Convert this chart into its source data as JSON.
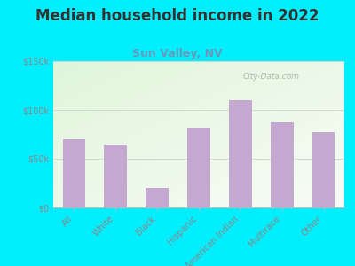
{
  "title": "Median household income in 2022",
  "subtitle": "Sun Valley, NV",
  "categories": [
    "All",
    "White",
    "Black",
    "Hispanic",
    "American Indian",
    "Multirace",
    "Other"
  ],
  "values": [
    70000,
    65000,
    20000,
    82000,
    110000,
    87000,
    77000
  ],
  "bar_color": "#c4a8d0",
  "background_outer": "#00efff",
  "title_color": "#333333",
  "subtitle_color": "#6699bb",
  "tick_color": "#888888",
  "ylim": [
    0,
    150000
  ],
  "yticks": [
    0,
    50000,
    100000,
    150000
  ],
  "ytick_labels": [
    "$0",
    "$50k",
    "$100k",
    "$150k"
  ],
  "watermark": "City-Data.com",
  "title_fontsize": 12,
  "subtitle_fontsize": 9,
  "tick_fontsize": 7
}
